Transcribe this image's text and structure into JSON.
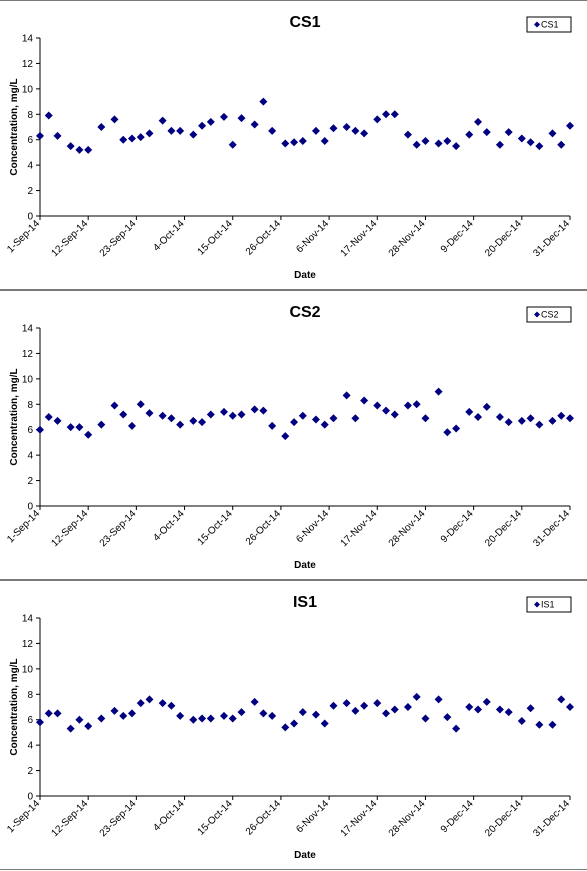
{
  "marker_color": "#000080",
  "chart_data": [
    {
      "type": "scatter",
      "title": "CS1",
      "xlabel": "Date",
      "ylabel": "Concentration, mg/L",
      "ylim": [
        0,
        14
      ],
      "yticks": [
        "0",
        "2",
        "4",
        "6",
        "8",
        "10",
        "12",
        "14"
      ],
      "xticks": [
        "1-Sep-14",
        "12-Sep-14",
        "23-Sep-14",
        "4-Oct-14",
        "15-Oct-14",
        "26-Oct-14",
        "6-Nov-14",
        "17-Nov-14",
        "28-Nov-14",
        "9-Dec-14",
        "20-Dec-14",
        "31-Dec-14"
      ],
      "grid": false,
      "legend": "top-right",
      "series": [
        {
          "name": "CS1",
          "x": [
            "2014-09-01",
            "2014-09-03",
            "2014-09-05",
            "2014-09-08",
            "2014-09-10",
            "2014-09-12",
            "2014-09-15",
            "2014-09-18",
            "2014-09-20",
            "2014-09-22",
            "2014-09-24",
            "2014-09-26",
            "2014-09-29",
            "2014-10-01",
            "2014-10-03",
            "2014-10-06",
            "2014-10-08",
            "2014-10-10",
            "2014-10-13",
            "2014-10-15",
            "2014-10-17",
            "2014-10-20",
            "2014-10-22",
            "2014-10-24",
            "2014-10-27",
            "2014-10-29",
            "2014-10-31",
            "2014-11-03",
            "2014-11-05",
            "2014-11-07",
            "2014-11-10",
            "2014-11-12",
            "2014-11-14",
            "2014-11-17",
            "2014-11-19",
            "2014-11-21",
            "2014-11-24",
            "2014-11-26",
            "2014-11-28",
            "2014-12-01",
            "2014-12-03",
            "2014-12-05",
            "2014-12-08",
            "2014-12-10",
            "2014-12-12",
            "2014-12-15",
            "2014-12-17",
            "2014-12-20",
            "2014-12-22",
            "2014-12-24",
            "2014-12-27",
            "2014-12-29",
            "2014-12-31"
          ],
          "y": [
            6.3,
            7.9,
            6.3,
            5.5,
            5.2,
            5.2,
            7.0,
            7.6,
            6.0,
            6.1,
            6.2,
            6.5,
            7.5,
            6.7,
            6.7,
            6.4,
            7.1,
            7.4,
            7.8,
            5.6,
            7.7,
            7.2,
            9.0,
            6.7,
            5.7,
            5.8,
            5.9,
            6.7,
            5.9,
            6.9,
            7.0,
            6.7,
            6.5,
            7.6,
            8.0,
            8.0,
            6.4,
            5.6,
            5.9,
            5.7,
            5.9,
            5.5,
            6.4,
            7.4,
            6.6,
            5.6,
            6.6,
            6.1,
            5.8,
            5.5,
            6.5,
            5.6,
            7.1
          ]
        }
      ]
    },
    {
      "type": "scatter",
      "title": "CS2",
      "xlabel": "Date",
      "ylabel": "Concentration, mg/L",
      "ylim": [
        0,
        14
      ],
      "yticks": [
        "0",
        "2",
        "4",
        "6",
        "8",
        "10",
        "12",
        "14"
      ],
      "xticks": [
        "1-Sep-14",
        "12-Sep-14",
        "23-Sep-14",
        "4-Oct-14",
        "15-Oct-14",
        "26-Oct-14",
        "6-Nov-14",
        "17-Nov-14",
        "28-Nov-14",
        "9-Dec-14",
        "20-Dec-14",
        "31-Dec-14"
      ],
      "grid": false,
      "legend": "top-right",
      "series": [
        {
          "name": "CS2",
          "x": [
            "2014-09-01",
            "2014-09-03",
            "2014-09-05",
            "2014-09-08",
            "2014-09-10",
            "2014-09-12",
            "2014-09-15",
            "2014-09-18",
            "2014-09-20",
            "2014-09-22",
            "2014-09-24",
            "2014-09-26",
            "2014-09-29",
            "2014-10-01",
            "2014-10-03",
            "2014-10-06",
            "2014-10-08",
            "2014-10-10",
            "2014-10-13",
            "2014-10-15",
            "2014-10-17",
            "2014-10-20",
            "2014-10-22",
            "2014-10-24",
            "2014-10-27",
            "2014-10-29",
            "2014-10-31",
            "2014-11-03",
            "2014-11-05",
            "2014-11-07",
            "2014-11-10",
            "2014-11-12",
            "2014-11-14",
            "2014-11-17",
            "2014-11-19",
            "2014-11-21",
            "2014-11-24",
            "2014-11-26",
            "2014-11-28",
            "2014-12-01",
            "2014-12-03",
            "2014-12-05",
            "2014-12-08",
            "2014-12-10",
            "2014-12-12",
            "2014-12-15",
            "2014-12-17",
            "2014-12-20",
            "2014-12-22",
            "2014-12-24",
            "2014-12-27",
            "2014-12-29",
            "2014-12-31"
          ],
          "y": [
            6.0,
            7.0,
            6.7,
            6.2,
            6.2,
            5.6,
            6.4,
            7.9,
            7.2,
            6.3,
            8.0,
            7.3,
            7.1,
            6.9,
            6.4,
            6.7,
            6.6,
            7.2,
            7.4,
            7.1,
            7.2,
            7.6,
            7.5,
            6.3,
            5.5,
            6.6,
            7.1,
            6.8,
            6.4,
            6.9,
            8.7,
            6.9,
            8.3,
            7.9,
            7.5,
            7.2,
            7.9,
            8.0,
            6.9,
            9.0,
            5.8,
            6.1,
            7.4,
            7.0,
            7.8,
            7.0,
            6.6,
            6.7,
            6.9,
            6.4,
            6.7,
            7.1,
            6.9
          ]
        }
      ]
    },
    {
      "type": "scatter",
      "title": "IS1",
      "xlabel": "Date",
      "ylabel": "Concentration, mg/L",
      "ylim": [
        0,
        14
      ],
      "yticks": [
        "0",
        "2",
        "4",
        "6",
        "8",
        "10",
        "12",
        "14"
      ],
      "xticks": [
        "1-Sep-14",
        "12-Sep-14",
        "23-Sep-14",
        "4-Oct-14",
        "15-Oct-14",
        "26-Oct-14",
        "6-Nov-14",
        "17-Nov-14",
        "28-Nov-14",
        "9-Dec-14",
        "20-Dec-14",
        "31-Dec-14"
      ],
      "grid": false,
      "legend": "top-right",
      "series": [
        {
          "name": "IS1",
          "x": [
            "2014-09-01",
            "2014-09-03",
            "2014-09-05",
            "2014-09-08",
            "2014-09-10",
            "2014-09-12",
            "2014-09-15",
            "2014-09-18",
            "2014-09-20",
            "2014-09-22",
            "2014-09-24",
            "2014-09-26",
            "2014-09-29",
            "2014-10-01",
            "2014-10-03",
            "2014-10-06",
            "2014-10-08",
            "2014-10-10",
            "2014-10-13",
            "2014-10-15",
            "2014-10-17",
            "2014-10-20",
            "2014-10-22",
            "2014-10-24",
            "2014-10-27",
            "2014-10-29",
            "2014-10-31",
            "2014-11-03",
            "2014-11-05",
            "2014-11-07",
            "2014-11-10",
            "2014-11-12",
            "2014-11-14",
            "2014-11-17",
            "2014-11-19",
            "2014-11-21",
            "2014-11-24",
            "2014-11-26",
            "2014-11-28",
            "2014-12-01",
            "2014-12-03",
            "2014-12-05",
            "2014-12-08",
            "2014-12-10",
            "2014-12-12",
            "2014-12-15",
            "2014-12-17",
            "2014-12-20",
            "2014-12-22",
            "2014-12-24",
            "2014-12-27",
            "2014-12-29",
            "2014-12-31"
          ],
          "y": [
            5.8,
            6.5,
            6.5,
            5.3,
            6.0,
            5.5,
            6.1,
            6.7,
            6.3,
            6.5,
            7.3,
            7.6,
            7.3,
            7.1,
            6.3,
            6.0,
            6.1,
            6.1,
            6.3,
            6.1,
            6.6,
            7.4,
            6.5,
            6.3,
            5.4,
            5.7,
            6.6,
            6.4,
            5.7,
            7.1,
            7.3,
            6.7,
            7.1,
            7.3,
            6.5,
            6.8,
            7.0,
            7.8,
            6.1,
            7.6,
            6.2,
            5.3,
            7.0,
            6.8,
            7.4,
            6.8,
            6.6,
            5.9,
            6.9,
            5.6,
            5.6,
            7.6,
            7.0
          ]
        }
      ]
    }
  ]
}
